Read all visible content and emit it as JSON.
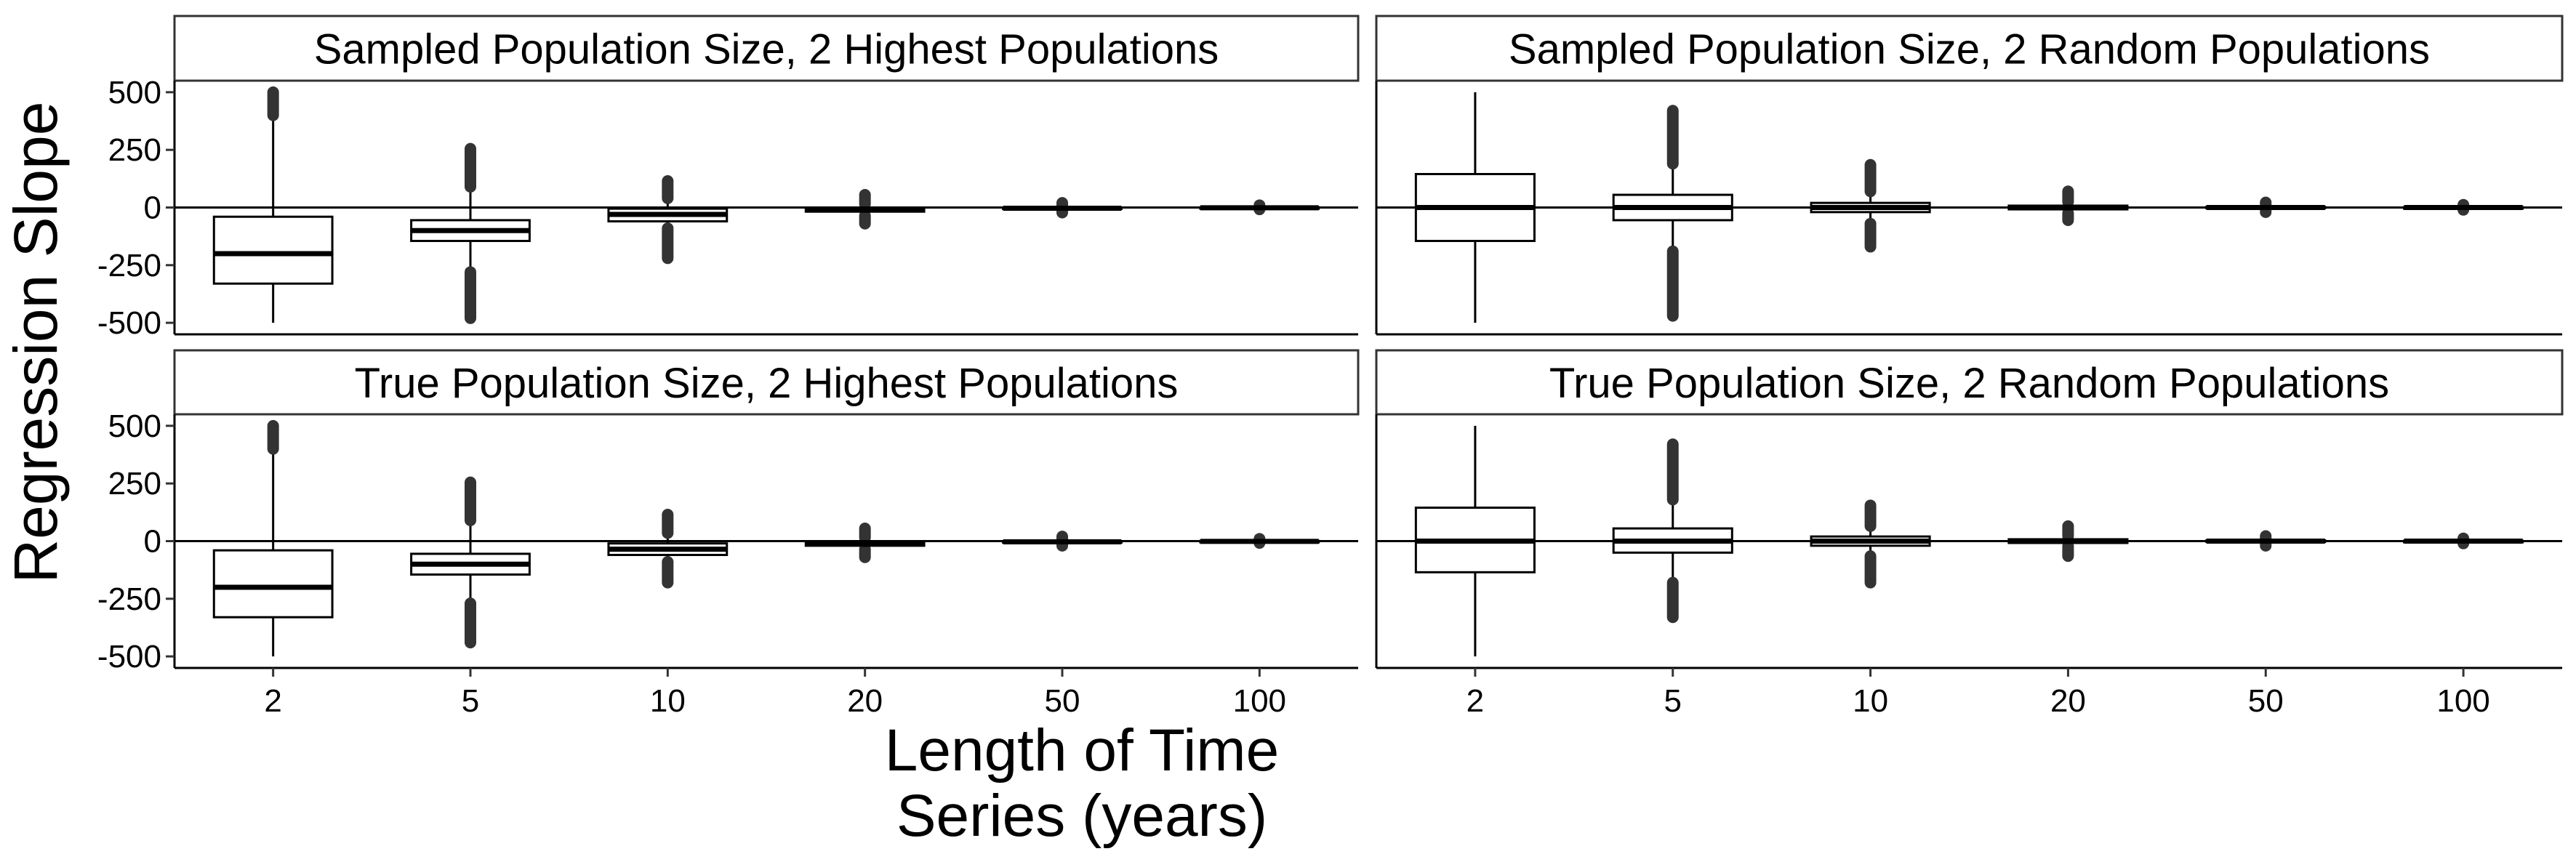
{
  "chart_data": {
    "type": "box",
    "ylabel": "Regression Slope",
    "xlabel_lines": [
      "Length of Time",
      "Series (years)"
    ],
    "categories": [
      "2",
      "5",
      "10",
      "20",
      "50",
      "100"
    ],
    "yticks": [
      500,
      250,
      0,
      -250,
      -500
    ],
    "ytick_labels": [
      "500",
      "250",
      "0",
      "-250",
      "-500"
    ],
    "ylim": [
      -550,
      550
    ],
    "reference_line": 0,
    "grid": false,
    "colors": {
      "box_fill": "#ffffff",
      "box_stroke": "#000000",
      "outlier": "#333333",
      "strip_fill": "#ffffff"
    },
    "panels": [
      {
        "title": "Sampled Population Size, 2 Highest Populations",
        "boxes": [
          {
            "category": "2",
            "q1": -330,
            "median": -200,
            "q3": -40,
            "whisker_low": -500,
            "whisker_high": 400,
            "outliers_low": [],
            "outliers_high": [
              400,
              500
            ]
          },
          {
            "category": "5",
            "q1": -145,
            "median": -100,
            "q3": -55,
            "whisker_low": -280,
            "whisker_high": 90,
            "outliers_low": [
              -280,
              -480
            ],
            "outliers_high": [
              90,
              255
            ]
          },
          {
            "category": "10",
            "q1": -60,
            "median": -30,
            "q3": -5,
            "whisker_low": -90,
            "whisker_high": 40,
            "outliers_low": [
              -90,
              -220
            ],
            "outliers_high": [
              40,
              115
            ]
          },
          {
            "category": "20",
            "q1": -18,
            "median": -10,
            "q3": -2,
            "whisker_low": -35,
            "whisker_high": 15,
            "outliers_low": [
              -35,
              -70
            ],
            "outliers_high": [
              15,
              55
            ]
          },
          {
            "category": "50",
            "q1": -6,
            "median": -3,
            "q3": 0,
            "whisker_low": -10,
            "whisker_high": 5,
            "outliers_low": [
              -10,
              -22
            ],
            "outliers_high": [
              5,
              20
            ]
          },
          {
            "category": "100",
            "q1": -3,
            "median": -1,
            "q3": 1,
            "whisker_low": -4,
            "whisker_high": 3,
            "outliers_low": [
              -4,
              -8
            ],
            "outliers_high": [
              3,
              10
            ]
          }
        ]
      },
      {
        "title": "Sampled Population Size, 2 Random Populations",
        "boxes": [
          {
            "category": "2",
            "q1": -145,
            "median": 0,
            "q3": 145,
            "whisker_low": -500,
            "whisker_high": 500,
            "outliers_low": [],
            "outliers_high": []
          },
          {
            "category": "5",
            "q1": -55,
            "median": 0,
            "q3": 55,
            "whisker_low": -190,
            "whisker_high": 190,
            "outliers_low": [
              -190,
              -470
            ],
            "outliers_high": [
              190,
              420
            ]
          },
          {
            "category": "10",
            "q1": -20,
            "median": 0,
            "q3": 20,
            "whisker_low": -70,
            "whisker_high": 70,
            "outliers_low": [
              -70,
              -170
            ],
            "outliers_high": [
              70,
              185
            ]
          },
          {
            "category": "20",
            "q1": -8,
            "median": 0,
            "q3": 8,
            "whisker_low": -25,
            "whisker_high": 25,
            "outliers_low": [
              -25,
              -55
            ],
            "outliers_high": [
              25,
              70
            ]
          },
          {
            "category": "50",
            "q1": -3,
            "median": 0,
            "q3": 3,
            "whisker_low": -9,
            "whisker_high": 9,
            "outliers_low": [
              -9,
              -20
            ],
            "outliers_high": [
              9,
              22
            ]
          },
          {
            "category": "100",
            "q1": -1.5,
            "median": 0,
            "q3": 1.5,
            "whisker_low": -4,
            "whisker_high": 4,
            "outliers_low": [
              -4,
              -10
            ],
            "outliers_high": [
              4,
              12
            ]
          }
        ]
      },
      {
        "title": "True Population Size, 2 Highest Populations",
        "boxes": [
          {
            "category": "2",
            "q1": -330,
            "median": -200,
            "q3": -40,
            "whisker_low": -500,
            "whisker_high": 400,
            "outliers_low": [],
            "outliers_high": [
              400,
              500
            ]
          },
          {
            "category": "5",
            "q1": -145,
            "median": -100,
            "q3": -55,
            "whisker_low": -270,
            "whisker_high": 90,
            "outliers_low": [
              -270,
              -440
            ],
            "outliers_high": [
              90,
              255
            ]
          },
          {
            "category": "10",
            "q1": -60,
            "median": -35,
            "q3": -10,
            "whisker_low": -90,
            "whisker_high": 35,
            "outliers_low": [
              -90,
              -180
            ],
            "outliers_high": [
              35,
              115
            ]
          },
          {
            "category": "20",
            "q1": -20,
            "median": -10,
            "q3": -3,
            "whisker_low": -35,
            "whisker_high": 15,
            "outliers_low": [
              -35,
              -70
            ],
            "outliers_high": [
              15,
              55
            ]
          },
          {
            "category": "50",
            "q1": -6,
            "median": -3,
            "q3": 0,
            "whisker_low": -10,
            "whisker_high": 5,
            "outliers_low": [
              -10,
              -20
            ],
            "outliers_high": [
              5,
              20
            ]
          },
          {
            "category": "100",
            "q1": -3,
            "median": -1,
            "q3": 1,
            "whisker_low": -4,
            "whisker_high": 3,
            "outliers_low": [
              -4,
              -8
            ],
            "outliers_high": [
              3,
              10
            ]
          }
        ]
      },
      {
        "title": "True Population Size, 2 Random Populations",
        "boxes": [
          {
            "category": "2",
            "q1": -135,
            "median": 0,
            "q3": 145,
            "whisker_low": -500,
            "whisker_high": 500,
            "outliers_low": [],
            "outliers_high": []
          },
          {
            "category": "5",
            "q1": -50,
            "median": 0,
            "q3": 55,
            "whisker_low": -180,
            "whisker_high": 180,
            "outliers_low": [
              -180,
              -330
            ],
            "outliers_high": [
              180,
              420
            ]
          },
          {
            "category": "10",
            "q1": -20,
            "median": 0,
            "q3": 20,
            "whisker_low": -65,
            "whisker_high": 65,
            "outliers_low": [
              -65,
              -180
            ],
            "outliers_high": [
              65,
              155
            ]
          },
          {
            "category": "20",
            "q1": -8,
            "median": 0,
            "q3": 8,
            "whisker_low": -22,
            "whisker_high": 22,
            "outliers_low": [
              -22,
              -65
            ],
            "outliers_high": [
              22,
              65
            ]
          },
          {
            "category": "50",
            "q1": -3,
            "median": 0,
            "q3": 3,
            "whisker_low": -9,
            "whisker_high": 9,
            "outliers_low": [
              -9,
              -20
            ],
            "outliers_high": [
              9,
              22
            ]
          },
          {
            "category": "100",
            "q1": -1.5,
            "median": 0,
            "q3": 1.5,
            "whisker_low": -4,
            "whisker_high": 4,
            "outliers_low": [
              -4,
              -10
            ],
            "outliers_high": [
              4,
              12
            ]
          }
        ]
      }
    ]
  }
}
